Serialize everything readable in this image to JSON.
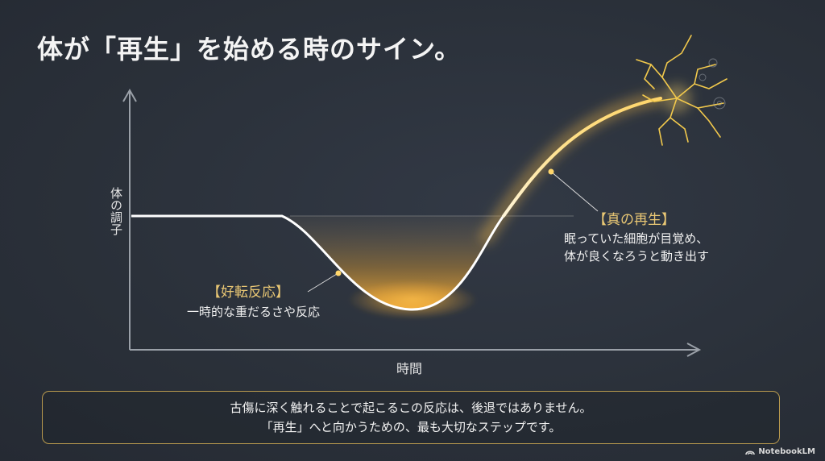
{
  "title": "体が「再生」を始める時のサイン。",
  "axes": {
    "y_label": "体の調子",
    "x_label": "時間"
  },
  "callouts": {
    "improvement": {
      "title": "【好転反応】",
      "text": "一時的な重だるさや反応"
    },
    "regeneration": {
      "title": "【真の再生】",
      "lines": [
        "眠っていた細胞が目覚め、",
        "体が良くなろうと動き出す"
      ]
    }
  },
  "message": {
    "lines": [
      "古傷に深く触れることで起こるこの反応は、後退ではありません。",
      "「再生」へと向かうための、最も大切なステップです。"
    ]
  },
  "brand": {
    "name": "NotebookLM"
  },
  "colors": {
    "background": "#2b313b",
    "accent_gold": "#e9c774",
    "curve": "#ffffff",
    "glow": "#f5b53a"
  }
}
